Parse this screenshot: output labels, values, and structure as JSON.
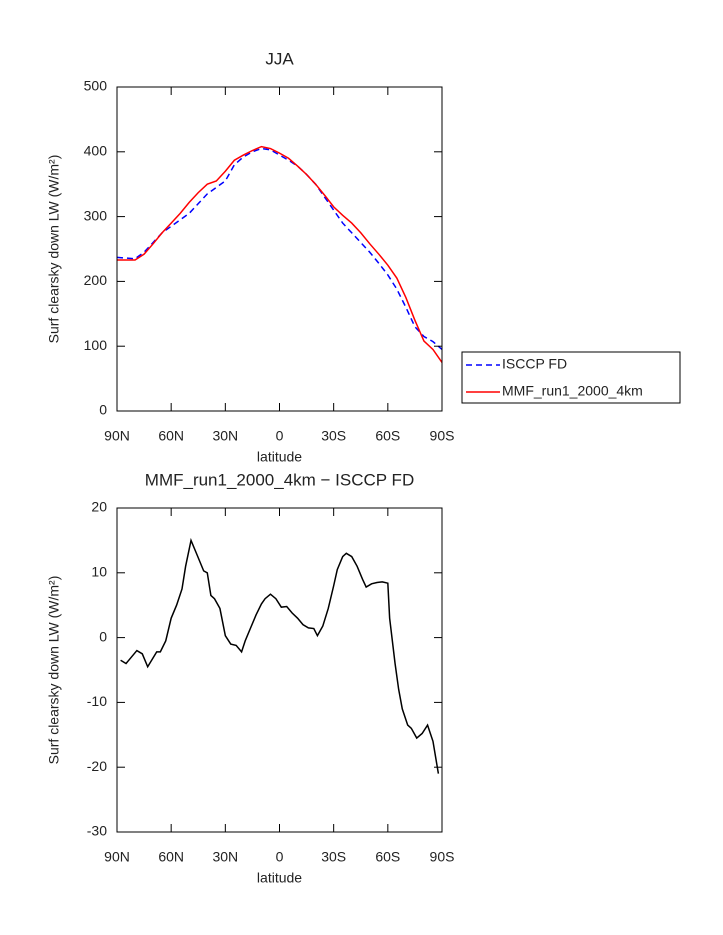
{
  "chart_data": [
    {
      "type": "line",
      "title": "JJA",
      "ylabel": "Surf clearsky down LW (W/m²)",
      "xlabel": "latitude",
      "x": [
        90,
        85,
        80,
        75,
        70,
        65,
        60,
        55,
        50,
        45,
        40,
        35,
        30,
        25,
        20,
        15,
        10,
        5,
        0,
        -5,
        -10,
        -15,
        -20,
        -25,
        -30,
        -35,
        -40,
        -45,
        -50,
        -55,
        -60,
        -65,
        -70,
        -75,
        -80,
        -85,
        -90
      ],
      "series": [
        {
          "name": "ISCCP FD",
          "color": "#0000ff",
          "dashed": true,
          "values": [
            237,
            236,
            235,
            245,
            260,
            275,
            285,
            295,
            305,
            320,
            335,
            345,
            355,
            380,
            392,
            400,
            405,
            403,
            395,
            387,
            378,
            365,
            350,
            330,
            310,
            290,
            275,
            260,
            245,
            228,
            210,
            188,
            160,
            130,
            115,
            107,
            95
          ]
        },
        {
          "name": "MMF_run1_2000_4km",
          "color": "#ff0000",
          "dashed": false,
          "values": [
            233,
            233,
            233,
            242,
            258,
            275,
            290,
            305,
            322,
            337,
            350,
            355,
            370,
            387,
            395,
            402,
            408,
            405,
            398,
            390,
            378,
            365,
            350,
            333,
            315,
            302,
            290,
            275,
            258,
            242,
            225,
            205,
            175,
            140,
            108,
            95,
            75
          ]
        }
      ],
      "xlim": [
        90,
        -90
      ],
      "xticks": [
        {
          "value": 90,
          "label": "90N"
        },
        {
          "value": 60,
          "label": "60N"
        },
        {
          "value": 30,
          "label": "30N"
        },
        0,
        {
          "value": -30,
          "label": "30S"
        },
        {
          "value": -60,
          "label": "60S"
        },
        {
          "value": -90,
          "label": "90S"
        }
      ],
      "ylim": [
        0,
        500
      ],
      "yticks": [
        0,
        100,
        200,
        300,
        400,
        500
      ],
      "legend": "right"
    },
    {
      "type": "line",
      "title": "MMF_run1_2000_4km − ISCCP FD",
      "ylabel": "Surf clearsky down LW (W/m²)",
      "xlabel": "latitude",
      "x": [
        88,
        85,
        79,
        76,
        73,
        68,
        66,
        63,
        60,
        57,
        54,
        52,
        49,
        46,
        42,
        40,
        38,
        36,
        33,
        30,
        27,
        24,
        21,
        19,
        16,
        13,
        10,
        8,
        5,
        2,
        -1,
        -4,
        -7,
        -10,
        -13,
        -16,
        -19,
        -21,
        -24,
        -27,
        -30,
        -32,
        -35,
        -37,
        -40,
        -43,
        -46,
        -48,
        -51,
        -54,
        -57,
        -60,
        -61,
        -64,
        -66,
        -68,
        -71,
        -73,
        -76,
        -79,
        -82,
        -85,
        -88
      ],
      "values": [
        -3.5,
        -4,
        -2,
        -2.5,
        -4.5,
        -2.2,
        -2.2,
        -0.5,
        3,
        5,
        7.5,
        11,
        15,
        13,
        10.3,
        10,
        6.5,
        6,
        4.5,
        0.3,
        -1,
        -1.2,
        -2.2,
        -0.5,
        1.5,
        3.5,
        5.2,
        6,
        6.7,
        6,
        4.7,
        4.8,
        3.8,
        3,
        2,
        1.5,
        1.4,
        0.3,
        1.8,
        4.5,
        8,
        10.5,
        12.5,
        13,
        12.5,
        11,
        9,
        7.8,
        8.3,
        8.5,
        8.6,
        8.4,
        3,
        -4,
        -8,
        -11,
        -13.5,
        -14,
        -15.5,
        -14.8,
        -13.5,
        -16,
        -21
      ],
      "color": "#000000",
      "xlim": [
        90,
        -90
      ],
      "xticks": [
        {
          "value": 90,
          "label": "90N"
        },
        {
          "value": 60,
          "label": "60N"
        },
        {
          "value": 30,
          "label": "30N"
        },
        0,
        {
          "value": -30,
          "label": "30S"
        },
        {
          "value": -60,
          "label": "60S"
        },
        {
          "value": -90,
          "label": "90S"
        }
      ],
      "ylim": [
        -30,
        20
      ],
      "yticks": [
        -30,
        -20,
        -10,
        0,
        10,
        20
      ]
    }
  ]
}
